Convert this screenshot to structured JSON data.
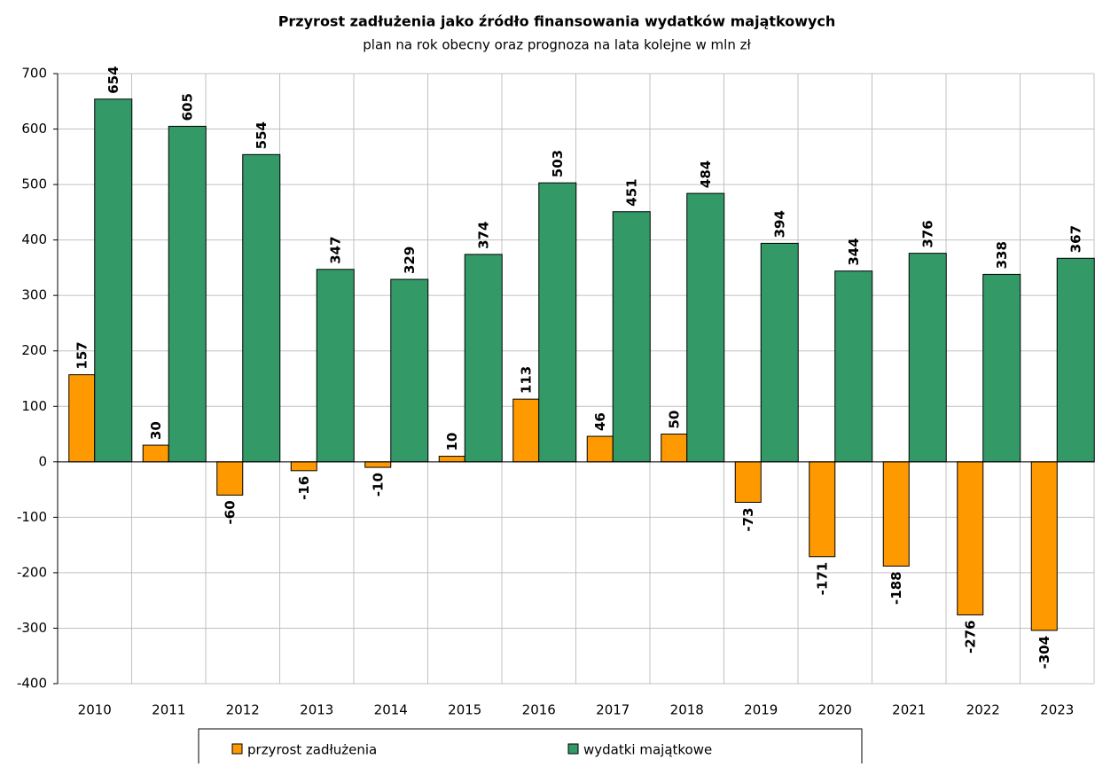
{
  "chart_data": {
    "type": "bar",
    "title": "Przyrost zadłużenia jako źródło finansowania wydatków majątkowych",
    "subtitle": "plan na rok obecny oraz prognoza na lata kolejne w mln zł",
    "categories": [
      "2010",
      "2011",
      "2012",
      "2013",
      "2014",
      "2015",
      "2016",
      "2017",
      "2018",
      "2019",
      "2020",
      "2021",
      "2022",
      "2023"
    ],
    "series": [
      {
        "name": "przyrost zadłużenia",
        "color": "#ff9900",
        "values": [
          157,
          30,
          -60,
          -16,
          -10,
          10,
          113,
          46,
          50,
          -73,
          -171,
          -188,
          -276,
          -304
        ]
      },
      {
        "name": "wydatki majątkowe",
        "color": "#339966",
        "values": [
          654,
          605,
          554,
          347,
          329,
          374,
          503,
          451,
          484,
          394,
          344,
          376,
          338,
          367
        ]
      }
    ],
    "ylim": [
      -400,
      700
    ],
    "yticks": [
      -400,
      -300,
      -200,
      -100,
      0,
      100,
      200,
      300,
      400,
      500,
      600,
      700
    ],
    "grid": true,
    "legend": "bottom"
  }
}
